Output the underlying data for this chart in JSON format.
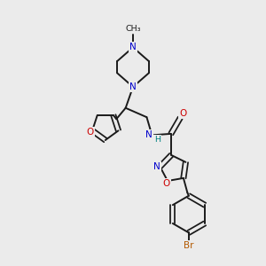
{
  "background_color": "#ebebeb",
  "bond_color": "#1a1a1a",
  "nitrogen_color": "#0000cc",
  "oxygen_color": "#cc0000",
  "bromine_color": "#b35900",
  "nh_color": "#008080",
  "figsize": [
    3.0,
    3.0
  ],
  "dpi": 100,
  "xlim": [
    0,
    10
  ],
  "ylim": [
    0,
    10
  ]
}
